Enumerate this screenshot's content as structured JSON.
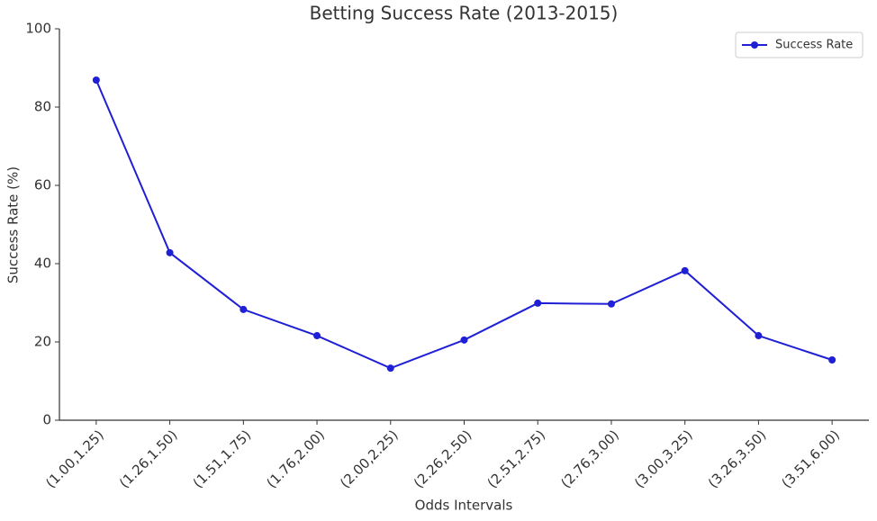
{
  "chart_data": {
    "type": "line",
    "title": "Betting Success Rate (2013-2015)",
    "x_label": "Odds Intervals",
    "y_label": "Success Rate (%)",
    "categories": [
      "(1.00,1.25)",
      "(1.26,1.50)",
      "(1.51,1.75)",
      "(1.76,2.00)",
      "(2.00,2.25)",
      "(2.26,2.50)",
      "(2.51,2.75)",
      "(2.76,3.00)",
      "(3.00,3.25)",
      "(3.26,3.50)",
      "(3.51,6.00)"
    ],
    "series": [
      {
        "name": "Success Rate",
        "color": "#1f1fd6",
        "values": [
          86.9,
          42.8,
          28.3,
          21.6,
          13.3,
          20.5,
          29.9,
          29.7,
          38.2,
          21.6,
          15.4
        ]
      }
    ],
    "ylim": [
      0,
      100
    ],
    "yticks": [
      0,
      20,
      40,
      60,
      80,
      100
    ],
    "grid": false,
    "legend": "upper right"
  }
}
